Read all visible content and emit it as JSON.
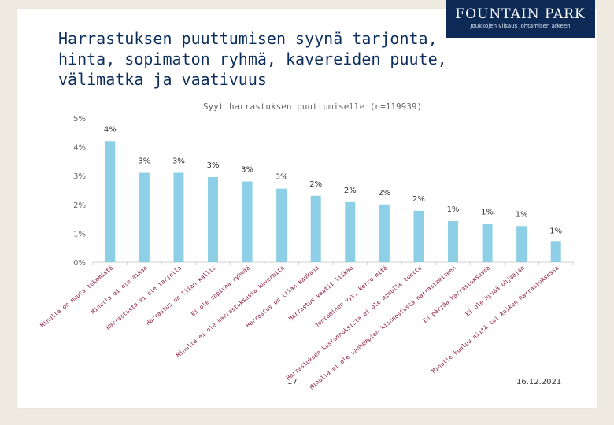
{
  "header": {
    "title_lines": [
      "Harrastuksen puuttumisen syynä tarjonta,",
      "hinta, sopimaton ryhmä, kavereiden puute,",
      "välimatka ja vaativuus"
    ]
  },
  "logo": {
    "brand": "FOUNTAIN PARK",
    "tagline": "Joukkojen viisaus johtamisen arkeen"
  },
  "footer": {
    "page_number": "17",
    "date": "16.12.2021"
  },
  "colors": {
    "bar": "#8ccfe6",
    "title": "#0d2f5e",
    "logo_bg": "#0d2a57",
    "tick_labels": "#8b1a3a",
    "axis_text": "#666666"
  },
  "chart_data": {
    "type": "bar",
    "title": "Syyt harrastuksen puuttumiselle (n=119939)",
    "categories": [
      "Minulla on muuta tekemistä",
      "Minulla ei ole aikaa",
      "Harrastusta ei ole tarjolla",
      "Harrastus on liian kallis",
      "Ei ole sopivaa ryhmää",
      "Minulla ei ole harrastuksessa kavereita",
      "Harrastus on liian kaukana",
      "Harrastus vaatii liikaa",
      "Johtaminen vyy, kerro mitä",
      "Harrastuksen kustannuksista ei ole minulle tuettu",
      "Minulla ei ole vanhempien kiinnostusta harrastamiseen",
      "En pärjää harrastuksessa",
      "Ei ole hyvää ohjaajaa",
      "Minulle kuuluu niitä tai kaiken harrastuksessa"
    ],
    "values": [
      4.2,
      3.1,
      3.1,
      2.95,
      2.8,
      2.55,
      2.3,
      2.08,
      2.0,
      1.78,
      1.42,
      1.33,
      1.25,
      0.73
    ],
    "data_labels": [
      "4%",
      "3%",
      "3%",
      "3%",
      "3%",
      "3%",
      "2%",
      "2%",
      "2%",
      "2%",
      "1%",
      "1%",
      "1%",
      "1%"
    ],
    "y_ticks": [
      "0%",
      "1%",
      "2%",
      "3%",
      "4%",
      "5%"
    ],
    "ylim": [
      0,
      5
    ],
    "xlabel": "",
    "ylabel": "",
    "grid": false,
    "legend": "none"
  }
}
